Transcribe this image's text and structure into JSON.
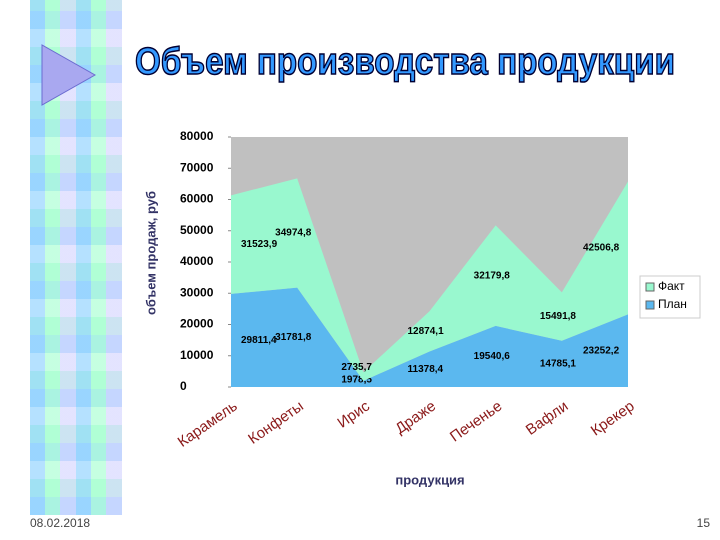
{
  "chart_data": {
    "type": "stacked-area",
    "title": "Объем производства продукции",
    "x_label": "продукция",
    "y_label": "объем продаж, руб",
    "categories": [
      "Карамель",
      "Конфеты",
      "Ирис",
      "Драже",
      "Печенье",
      "Вафли",
      "Крекер"
    ],
    "series": [
      {
        "name": "План",
        "color": "#5bb8ef",
        "values": [
          29811.4,
          31781.8,
          1978.5,
          11378.4,
          19540.6,
          14785.1,
          23252.2
        ],
        "value_labels": [
          "29811,4",
          "31781,8",
          "1978,5",
          "11378,4",
          "19540,6",
          "14785,1",
          "23252,2"
        ]
      },
      {
        "name": "Факт",
        "color": "#99f8cf",
        "values": [
          31523.9,
          34974.8,
          2735.7,
          12874.1,
          32179.8,
          15491.8,
          42506.8
        ],
        "value_labels": [
          "31523,9",
          "34974,8",
          "2735,7",
          "12874,1",
          "32179,8",
          "15491,8",
          "42506,8"
        ]
      }
    ],
    "ylim": [
      0,
      80000
    ],
    "yticks": [
      0,
      10000,
      20000,
      30000,
      40000,
      50000,
      60000,
      70000,
      80000
    ],
    "legend": "right",
    "plot_background": "#c0c0c0"
  },
  "footer": {
    "date": "08.02.2018",
    "page": "15"
  }
}
